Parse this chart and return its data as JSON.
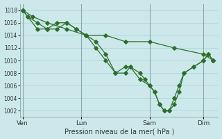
{
  "xlabel": "Pression niveau de la mer( hPa )",
  "bg_color": "#cce8ea",
  "grid_color": "#b0d8da",
  "line_color": "#2d6e2d",
  "ylim": [
    1001,
    1019
  ],
  "yticks": [
    1002,
    1004,
    1006,
    1008,
    1010,
    1012,
    1014,
    1016,
    1018
  ],
  "xtick_labels": [
    "Ven",
    "Lun",
    "Sam",
    "Dim"
  ],
  "xtick_positions": [
    0,
    12,
    26,
    37
  ],
  "vlines": [
    0,
    12,
    26,
    37
  ],
  "line1_x": [
    0,
    1,
    3,
    5,
    7,
    9,
    11,
    13,
    15,
    17,
    19,
    21,
    22,
    24,
    26,
    27,
    28,
    29,
    30,
    31,
    32,
    33,
    35,
    37,
    38,
    39
  ],
  "line1_y": [
    1018,
    1017,
    1016,
    1015,
    1015,
    1016,
    1015,
    1014,
    1012,
    1010,
    1008,
    1009,
    1009,
    1007,
    1006,
    1005,
    1003,
    1002,
    1002,
    1003,
    1005,
    1008,
    1009,
    1010,
    1011,
    1010
  ],
  "line2_x": [
    0,
    1,
    3,
    5,
    7,
    9,
    11,
    13,
    15,
    17,
    19,
    21,
    22,
    24,
    25,
    26,
    27,
    28,
    29,
    30,
    31,
    32,
    33,
    35,
    37,
    38,
    39
  ],
  "line2_y": [
    1018,
    1017,
    1015,
    1015,
    1016,
    1016,
    1015,
    1014,
    1013,
    1011,
    1008,
    1008,
    1009,
    1008,
    1007,
    1006,
    1005,
    1003,
    1002,
    1002,
    1004,
    1006,
    1008,
    1009,
    1010,
    1011,
    1010
  ],
  "line3_x": [
    0,
    2,
    5,
    9,
    13,
    17,
    21,
    26,
    31,
    37,
    39
  ],
  "line3_y": [
    1018,
    1017,
    1016,
    1015,
    1014,
    1014,
    1013,
    1013,
    1012,
    1011,
    1010
  ]
}
